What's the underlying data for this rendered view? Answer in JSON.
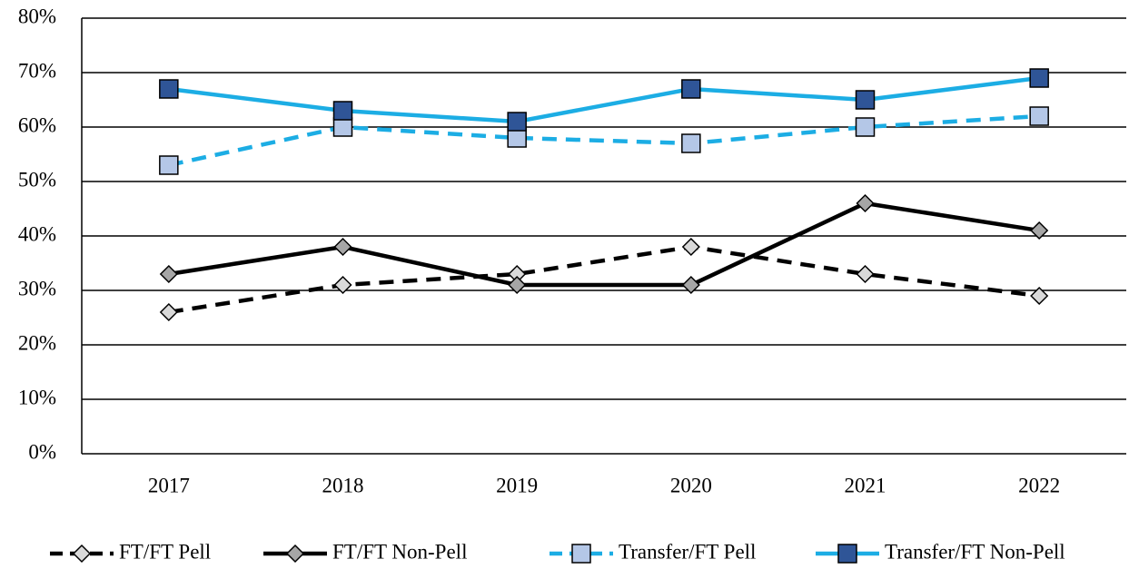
{
  "chart_data": {
    "type": "line",
    "categories": [
      "2017",
      "2018",
      "2019",
      "2020",
      "2021",
      "2022"
    ],
    "series": [
      {
        "name": "FT/FT Pell",
        "color": "#000000",
        "marker_color": "#d9d9d9",
        "marker": "diamond",
        "dashed": true,
        "values": [
          26,
          31,
          33,
          38,
          33,
          29
        ]
      },
      {
        "name": "FT/FT Non-Pell",
        "color": "#000000",
        "marker_color": "#a6a6a6",
        "marker": "diamond",
        "dashed": false,
        "values": [
          33,
          38,
          31,
          31,
          46,
          41
        ]
      },
      {
        "name": "Transfer/FT Pell",
        "color": "#1cade4",
        "marker_color": "#b4c7e7",
        "marker": "square",
        "dashed": true,
        "values": [
          53,
          60,
          58,
          57,
          60,
          62
        ]
      },
      {
        "name": "Transfer/FT Non-Pell",
        "color": "#1cade4",
        "marker_color": "#2f5597",
        "marker": "square",
        "dashed": false,
        "values": [
          67,
          63,
          61,
          67,
          65,
          69
        ]
      }
    ],
    "ylim": [
      0,
      80
    ],
    "yticks": [
      {
        "value": 0,
        "label": "0%"
      },
      {
        "value": 10,
        "label": "10%"
      },
      {
        "value": 20,
        "label": "20%"
      },
      {
        "value": 30,
        "label": "30%"
      },
      {
        "value": 40,
        "label": "40%"
      },
      {
        "value": 50,
        "label": "50%"
      },
      {
        "value": 60,
        "label": "60%"
      },
      {
        "value": 70,
        "label": "70%"
      },
      {
        "value": 80,
        "label": "80%"
      }
    ],
    "grid": true,
    "legend": "bottom"
  }
}
